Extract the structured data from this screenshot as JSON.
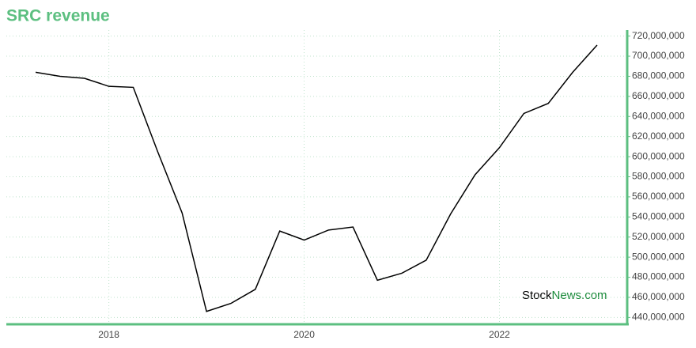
{
  "chart_data": {
    "type": "line",
    "title": "SRC revenue",
    "x": [
      2017.25,
      2017.5,
      2017.75,
      2018.0,
      2018.25,
      2018.5,
      2018.75,
      2019.0,
      2019.25,
      2019.5,
      2019.75,
      2020.0,
      2020.25,
      2020.5,
      2020.75,
      2021.0,
      2021.25,
      2021.5,
      2021.75,
      2022.0,
      2022.25,
      2022.5,
      2022.75,
      2023.0
    ],
    "series": [
      {
        "color": "#000000",
        "values": [
          684000000,
          680000000,
          678000000,
          670000000,
          669000000,
          605000000,
          544000000,
          446000000,
          454000000,
          468000000,
          526000000,
          517000000,
          527000000,
          530000000,
          477000000,
          484000000,
          497000000,
          543000000,
          582000000,
          609000000,
          643000000,
          653000000,
          684000000,
          711000000
        ]
      }
    ],
    "xlim": [
      2016.95,
      2023.3
    ],
    "xticks": [
      2018,
      2020,
      2022
    ],
    "ylim": [
      434000000,
      726000000
    ],
    "yticks": [
      {
        "value": 440000000,
        "label": "440,000,000"
      },
      {
        "value": 460000000,
        "label": "460,000,000"
      },
      {
        "value": 480000000,
        "label": "480,000,000"
      },
      {
        "value": 500000000,
        "label": "500,000,000"
      },
      {
        "value": 520000000,
        "label": "520,000,000"
      },
      {
        "value": 540000000,
        "label": "540,000,000"
      },
      {
        "value": 560000000,
        "label": "560,000,000"
      },
      {
        "value": 580000000,
        "label": "580,000,000"
      },
      {
        "value": 600000000,
        "label": "600,000,000"
      },
      {
        "value": 620000000,
        "label": "620,000,000"
      },
      {
        "value": 640000000,
        "label": "640,000,000"
      },
      {
        "value": 660000000,
        "label": "660,000,000"
      },
      {
        "value": 680000000,
        "label": "680,000,000"
      },
      {
        "value": 700000000,
        "label": "700,000,000"
      },
      {
        "value": 720000000,
        "label": "720,000,000"
      }
    ],
    "grid": true,
    "axis_color": "#5cbf80"
  },
  "watermark": {
    "brand": "Stock",
    "domain": "News.com"
  }
}
